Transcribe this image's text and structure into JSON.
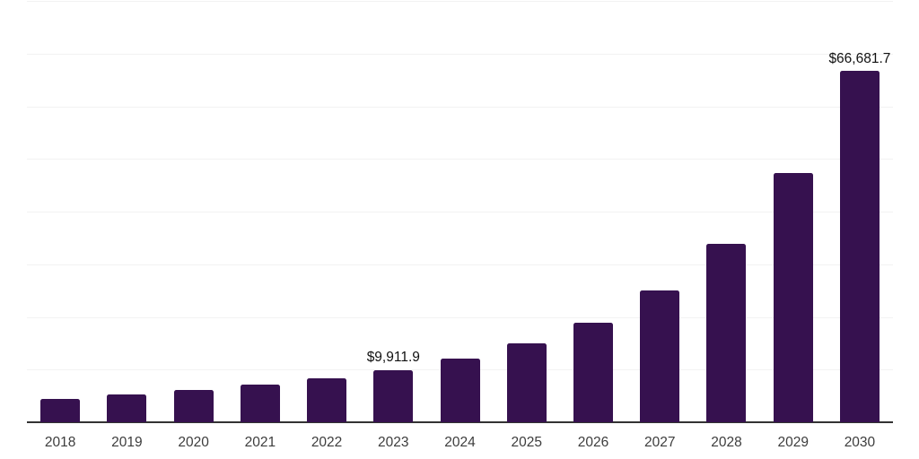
{
  "page": {
    "background": "#ffffff"
  },
  "chart_data": {
    "type": "bar",
    "categories": [
      "2018",
      "2019",
      "2020",
      "2021",
      "2022",
      "2023",
      "2024",
      "2025",
      "2026",
      "2027",
      "2028",
      "2029",
      "2030"
    ],
    "values": [
      4500,
      5300,
      6200,
      7200,
      8400,
      9911.9,
      12050,
      14950,
      18950,
      25100,
      33950,
      47350,
      66681.7
    ],
    "value_labels": [
      "",
      "",
      "",
      "",
      "",
      "$9,911.9",
      "",
      "",
      "",
      "",
      "",
      "",
      "$66,681.7"
    ],
    "xlabel": "",
    "ylabel": "",
    "ylim": [
      0,
      80000
    ],
    "gridline_interval": 10000,
    "grid": "horizontal-only",
    "legend": "none",
    "y_axis_tick_labels": "none",
    "colors": {
      "bar": "#36114F",
      "axis": "#333333",
      "gridline": "#F2F2F2",
      "tick_label": "#3D3D3D",
      "value_label": "#111111"
    }
  }
}
